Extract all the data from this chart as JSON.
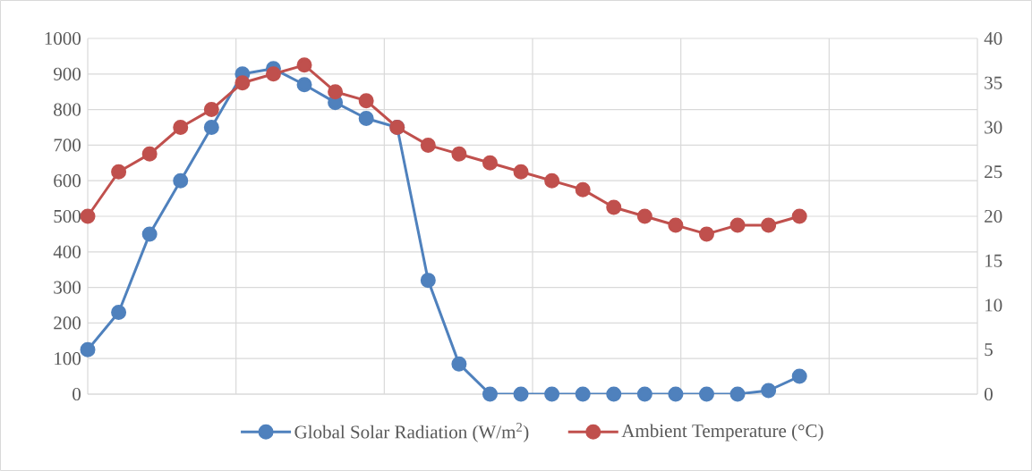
{
  "chart_data": {
    "type": "line",
    "categories": [
      null,
      null,
      null,
      null,
      null,
      null,
      null,
      null,
      null,
      null,
      null,
      null,
      null,
      null,
      null,
      null,
      null,
      null,
      null,
      null,
      null,
      null,
      null,
      null
    ],
    "ylim": [
      0,
      1000
    ],
    "yticks": [
      0,
      100,
      200,
      300,
      400,
      500,
      600,
      700,
      800,
      900,
      1000
    ],
    "y2lim": [
      0,
      40
    ],
    "y2ticks": [
      0,
      5,
      10,
      15,
      20,
      25,
      30,
      35,
      40
    ],
    "grid": true,
    "legend": "bottom",
    "marker": "circle",
    "line_style": "solid",
    "series": [
      {
        "name": "Global Solar Radiation (W/m$^{2}$)",
        "color": "#4f81bd",
        "values": [
          125,
          230,
          450,
          600,
          750,
          900,
          915,
          870,
          820,
          775,
          750,
          320,
          85,
          0,
          0,
          0,
          0,
          0,
          0,
          0,
          0,
          0,
          10,
          50
        ]
      },
      {
        "name": "Ambient Temperature (°C)",
        "color": "#c0504d",
        "axis": "y2",
        "values": [
          20,
          25,
          27,
          30,
          32,
          35,
          36,
          37,
          34,
          33,
          30,
          28,
          27,
          26,
          25,
          24,
          23,
          21,
          20,
          19,
          18,
          19,
          19,
          20
        ]
      }
    ]
  }
}
